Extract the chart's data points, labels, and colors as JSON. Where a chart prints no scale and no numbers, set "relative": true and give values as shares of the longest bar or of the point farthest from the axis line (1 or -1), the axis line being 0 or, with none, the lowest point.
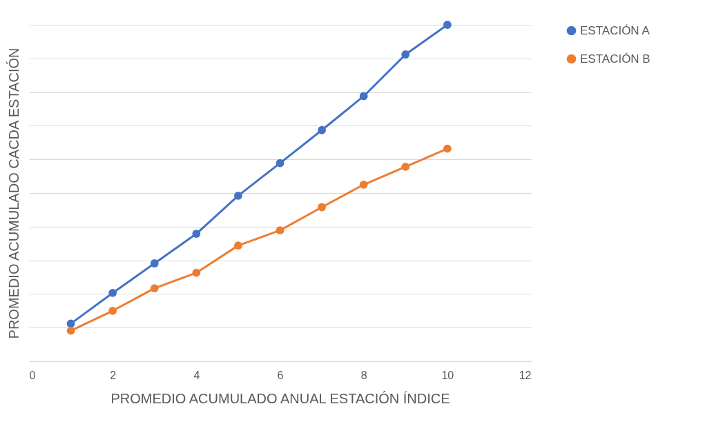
{
  "chart_data": {
    "type": "line",
    "relative": true,
    "xlabel": "PROMEDIO ACUMULADO ANUAL ESTACIÓN ÍNDICE",
    "ylabel": "PROMEDIO ACUMULADO CACDA ESTACIÓN",
    "x": [
      1,
      2,
      3,
      4,
      5,
      6,
      7,
      8,
      9,
      10
    ],
    "xlim": [
      0,
      12
    ],
    "xticks": [
      0,
      2,
      4,
      6,
      8,
      10,
      12
    ],
    "grid": "y",
    "legend": "right",
    "marker": "circle",
    "line_style": "solid",
    "series": [
      {
        "name": "ESTACIÓN A",
        "color": "#4472c4",
        "values": [
          0.112,
          0.203,
          0.291,
          0.379,
          0.492,
          0.589,
          0.687,
          0.788,
          0.912,
          1
        ]
      },
      {
        "name": "ESTACIÓN B",
        "color": "#ed7d31",
        "values": [
          0.091,
          0.15,
          0.217,
          0.263,
          0.344,
          0.389,
          0.458,
          0.525,
          0.578,
          0.632
        ]
      }
    ]
  }
}
